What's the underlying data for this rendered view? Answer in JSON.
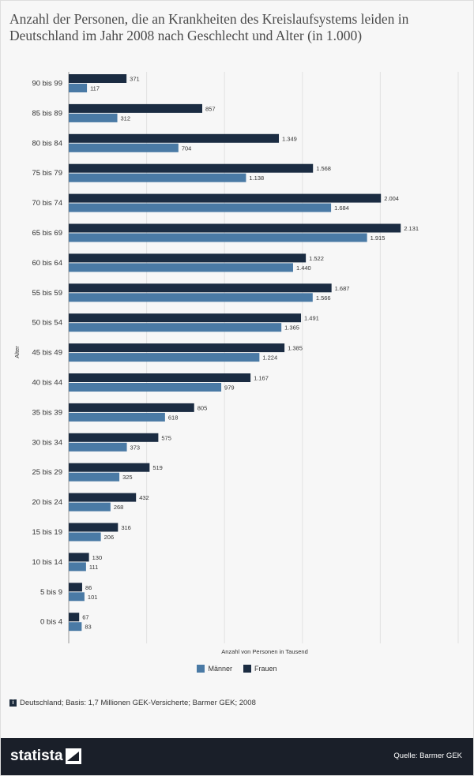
{
  "title": "Anzahl der Personen, die an Krankheiten des Kreislaufsystems leiden in Deutschland im Jahr 2008 nach Geschlecht und Alter (in 1.000)",
  "chart_data": {
    "type": "bar",
    "orientation": "horizontal",
    "title": "Anzahl der Personen, die an Krankheiten des Kreislaufsystems leiden in Deutschland im Jahr 2008 nach Geschlecht und Alter (in 1.000)",
    "xlabel": "Anzahl von Personen in Tausend",
    "ylabel": "Alter",
    "xlim": [
      0,
      2500
    ],
    "grid": "vertical",
    "legend_position": "bottom",
    "categories": [
      "90 bis 99",
      "85 bis 89",
      "80 bis 84",
      "75 bis 79",
      "70 bis 74",
      "65 bis 69",
      "60 bis 64",
      "55 bis 59",
      "50 bis 54",
      "45 bis 49",
      "40 bis 44",
      "35 bis 39",
      "30 bis 34",
      "25 bis 29",
      "20 bis 24",
      "15 bis 19",
      "10 bis 14",
      "5 bis 9",
      "0 bis 4"
    ],
    "series": [
      {
        "name": "Frauen",
        "color": "#1b2c42",
        "values": [
          371,
          857,
          1349,
          1568,
          2004,
          2131,
          1522,
          1687,
          1491,
          1385,
          1167,
          805,
          575,
          519,
          432,
          316,
          130,
          86,
          67
        ],
        "labels": [
          "371",
          "857",
          "1.349",
          "1.568",
          "2.004",
          "2.131",
          "1.522",
          "1.687",
          "1.491",
          "1.385",
          "1.167",
          "805",
          "575",
          "519",
          "432",
          "316",
          "130",
          "86",
          "67"
        ]
      },
      {
        "name": "Männer",
        "color": "#4a7aa5",
        "values": [
          117,
          312,
          704,
          1138,
          1684,
          1915,
          1440,
          1566,
          1365,
          1224,
          979,
          618,
          373,
          325,
          268,
          206,
          111,
          101,
          83
        ],
        "labels": [
          "117",
          "312",
          "704",
          "1.138",
          "1.684",
          "1.915",
          "1.440",
          "1.566",
          "1.365",
          "1.224",
          "979",
          "618",
          "373",
          "325",
          "268",
          "206",
          "111",
          "101",
          "83"
        ]
      }
    ]
  },
  "legend": {
    "maenner": "Männer",
    "frauen": "Frauen",
    "maenner_color": "#4a7aa5",
    "frauen_color": "#1b2c42"
  },
  "footnote": "Deutschland; Basis: 1,7 Millionen GEK-Versicherte; Barmer GEK; 2008",
  "footer": {
    "logo": "statista",
    "logo_icon": "statista-logo-icon",
    "source": "Quelle: Barmer GEK"
  }
}
